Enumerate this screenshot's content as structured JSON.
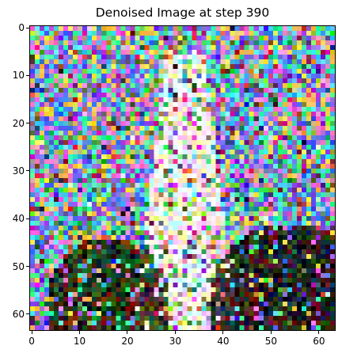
{
  "chart_data": {
    "type": "heatmap",
    "title": "Denoised Image at step 390",
    "xlabel": "",
    "ylabel": "",
    "width": 64,
    "height": 64,
    "xlim": [
      -0.5,
      63.5
    ],
    "ylim": [
      63.5,
      -0.5
    ],
    "x_ticks": [
      0,
      10,
      20,
      30,
      40,
      50,
      60
    ],
    "y_ticks": [
      0,
      10,
      20,
      30,
      40,
      50,
      60
    ],
    "grid": false,
    "colormap": "rgb noise",
    "regions": [
      {
        "name": "noisy sky",
        "rows": [
          0,
          63
        ],
        "cols": [
          0,
          63
        ],
        "dominant_colors": [
          "#4f6dff",
          "#48d2ff",
          "#ff7ad9",
          "#3dff9a",
          "#8b5cf6",
          "#ffd24a"
        ]
      },
      {
        "name": "bright vertical band",
        "rows": [
          5,
          63
        ],
        "cols": [
          24,
          40
        ],
        "dominant_colors": [
          "#ffe7a3",
          "#ffffff",
          "#b9f7ff",
          "#ffc0f5"
        ]
      },
      {
        "name": "dark mound left",
        "rows": [
          44,
          63
        ],
        "cols": [
          4,
          27
        ],
        "dominant_colors": [
          "#101010",
          "#2f4a12",
          "#6b1a0b",
          "#0b5a2f"
        ]
      },
      {
        "name": "dark mound right",
        "rows": [
          42,
          63
        ],
        "cols": [
          39,
          63
        ],
        "dominant_colors": [
          "#0b0b0b",
          "#2b3e10",
          "#13224f",
          "#5a0b16"
        ]
      }
    ]
  }
}
